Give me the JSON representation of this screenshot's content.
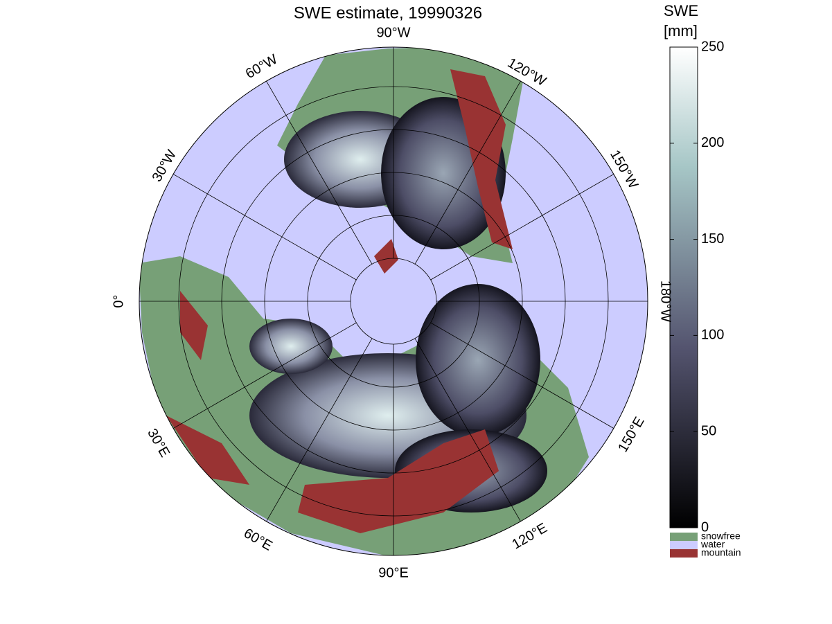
{
  "title": "SWE estimate, 19990326",
  "map": {
    "longitude_labels": [
      "90°W",
      "120°W",
      "150°W",
      "180°W",
      "150°E",
      "120°E",
      "90°E",
      "60°E",
      "30°E",
      "0°",
      "30°W",
      "60°W"
    ]
  },
  "colorbar": {
    "label": [
      "SWE",
      "[mm]"
    ],
    "lim": [
      0,
      250
    ],
    "ticks": [
      0,
      50,
      100,
      150,
      200,
      250
    ]
  },
  "legend": [
    {
      "name": "snowfree",
      "color": "#77a077"
    },
    {
      "name": "water",
      "color": "#ccccff"
    },
    {
      "name": "mountain",
      "color": "#993333"
    }
  ]
}
